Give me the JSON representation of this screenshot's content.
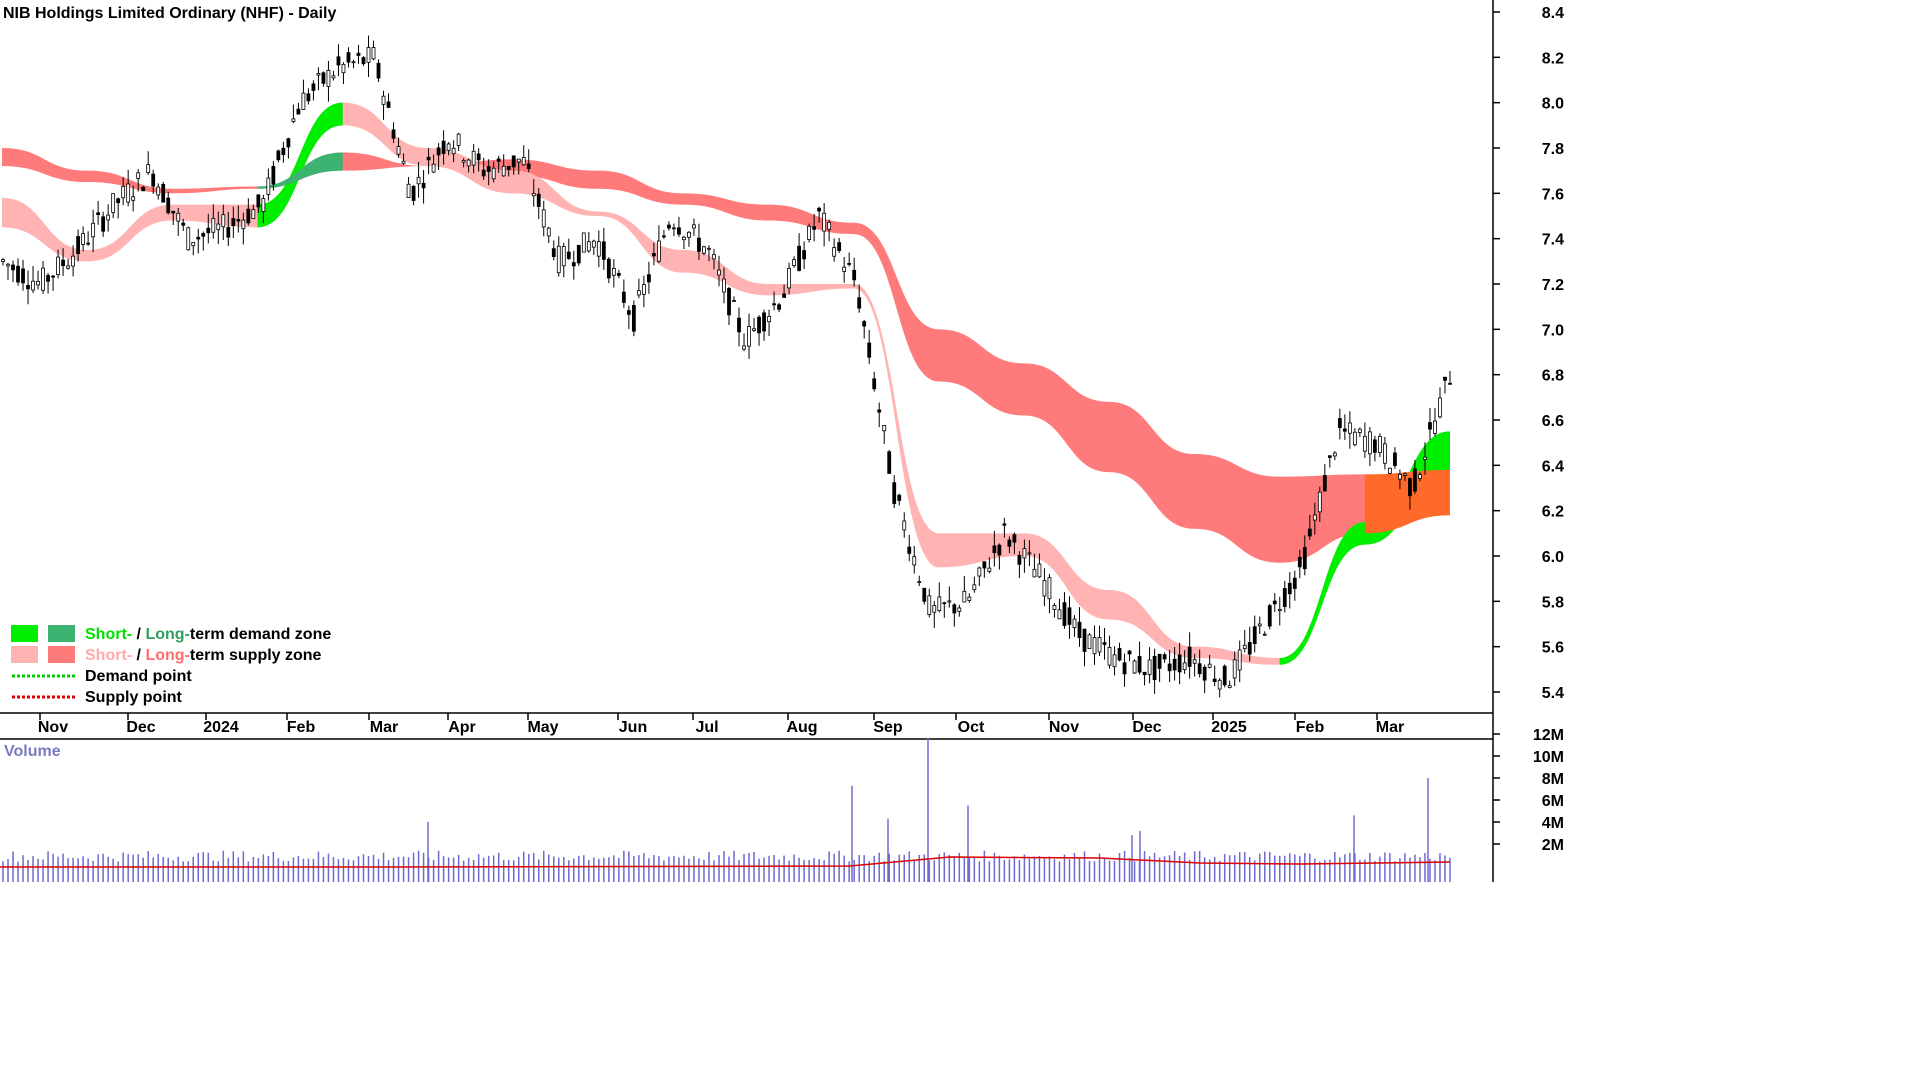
{
  "chart_data": {
    "type": "candlestick",
    "title": "NIB Holdings Limited Ordinary (NHF) - Daily",
    "y_axis": {
      "ticks": [
        "5.4",
        "5.6",
        "5.8",
        "6.0",
        "6.2",
        "6.4",
        "6.6",
        "6.8",
        "7.0",
        "7.2",
        "7.4",
        "7.6",
        "7.8",
        "8.0",
        "8.2",
        "8.4"
      ],
      "range": [
        5.28,
        8.44
      ]
    },
    "x_axis": {
      "labels": [
        "Nov",
        "Dec",
        "2024",
        "Feb",
        "Mar",
        "Apr",
        "May",
        "Jun",
        "Jul",
        "Aug",
        "Sep",
        "Oct",
        "Nov",
        "Dec",
        "2025",
        "Feb",
        "Mar"
      ]
    },
    "price_path": [
      [
        "Nov",
        7.3
      ],
      [
        "Nov",
        7.2
      ],
      [
        "Nov",
        7.35
      ],
      [
        "Dec",
        7.55
      ],
      [
        "Dec",
        7.7
      ],
      [
        "Dec",
        7.4
      ],
      [
        "2024",
        7.45
      ],
      [
        "2024",
        7.55
      ],
      [
        "Feb",
        8.0
      ],
      [
        "Feb",
        8.15
      ],
      [
        "Feb",
        8.2
      ],
      [
        "Mar",
        7.6
      ],
      [
        "Mar",
        7.85
      ],
      [
        "Apr",
        7.7
      ],
      [
        "Apr",
        7.75
      ],
      [
        "May",
        7.3
      ],
      [
        "May",
        7.4
      ],
      [
        "Jun",
        7.05
      ],
      [
        "Jun",
        7.5
      ],
      [
        "Jul",
        7.35
      ],
      [
        "Jul",
        6.95
      ],
      [
        "Aug",
        7.15
      ],
      [
        "Aug",
        7.5
      ],
      [
        "Aug",
        7.2
      ],
      [
        "Sep",
        6.3
      ],
      [
        "Sep",
        5.75
      ],
      [
        "Oct",
        5.8
      ],
      [
        "Oct",
        6.1
      ],
      [
        "Nov",
        5.9
      ],
      [
        "Nov",
        5.65
      ],
      [
        "Dec",
        5.55
      ],
      [
        "Dec",
        5.5
      ],
      [
        "2025",
        5.55
      ],
      [
        "2025",
        5.45
      ],
      [
        "Feb",
        5.7
      ],
      [
        "Feb",
        5.95
      ],
      [
        "Feb",
        6.55
      ],
      [
        "Mar",
        6.5
      ],
      [
        "Mar",
        6.3
      ],
      [
        "Mar",
        6.8
      ]
    ],
    "long_term_band": {
      "upper": [
        7.8,
        7.7,
        7.62,
        7.63,
        7.78,
        7.72,
        7.75,
        7.7,
        7.6,
        7.55,
        7.47,
        7.0,
        6.85,
        6.68,
        6.45,
        6.35,
        6.36,
        6.38
      ],
      "lower": [
        7.72,
        7.65,
        7.6,
        7.62,
        7.7,
        7.72,
        7.68,
        7.62,
        7.55,
        7.48,
        7.42,
        6.85,
        6.7,
        6.45,
        6.2,
        6.05,
        6.1,
        6.18
      ]
    },
    "short_term_band": {
      "upper": [
        7.58,
        7.35,
        7.55,
        7.55,
        8.0,
        7.8,
        7.7,
        7.52,
        7.35,
        7.2,
        7.2,
        6.1,
        6.1,
        5.85,
        5.6,
        5.55,
        6.15,
        6.55
      ],
      "lower": [
        7.45,
        7.3,
        7.48,
        7.45,
        7.9,
        7.72,
        7.6,
        7.5,
        7.25,
        7.15,
        7.18,
        5.95,
        6.0,
        5.72,
        5.55,
        5.52,
        6.05,
        6.35
      ]
    },
    "volume": {
      "label": "Volume",
      "ticks": [
        "12M",
        "10M",
        "8M",
        "6M",
        "4M",
        "2M"
      ],
      "spikes": [
        [
          "Sep",
          7.3
        ],
        [
          "Sep",
          4.3
        ],
        [
          "Oct",
          11.6
        ],
        [
          "Oct",
          5.5
        ],
        [
          "Apr",
          4.0
        ],
        [
          "Dec",
          2.8
        ],
        [
          "Dec",
          3.2
        ],
        [
          "Mar",
          8.0
        ],
        [
          "Mar",
          4.6
        ]
      ],
      "avg": 1.2
    },
    "legend": [
      {
        "prefix": "Short-",
        "sep": " / ",
        "main": "Long-",
        "suffix": "term demand zone",
        "swatches": [
          "#00ee00",
          "#3cb371"
        ],
        "prefix_color": "#00dd00",
        "main_color": "#2ea060"
      },
      {
        "prefix": "Short-",
        "sep": " / ",
        "main": "Long-",
        "suffix": "term supply zone",
        "swatches": [
          "#ffb3b3",
          "#ff7b7b"
        ],
        "prefix_color": "#ffaaaa",
        "main_color": "#ff6d6d"
      },
      {
        "label": "Demand point",
        "line_color": "#00cc00"
      },
      {
        "label": "Supply point",
        "line_color": "#dd0000"
      }
    ],
    "colors": {
      "candle": "#000000",
      "long_supply": "#ff7b7b",
      "short_supply": "#ffb3b3",
      "short_demand": "#00ee00",
      "long_demand": "#3cb371",
      "transition": "#ff6a2a",
      "volume_bar": "#6b6bd0",
      "volume_avg": "#dd0000",
      "axis": "#000000"
    }
  }
}
